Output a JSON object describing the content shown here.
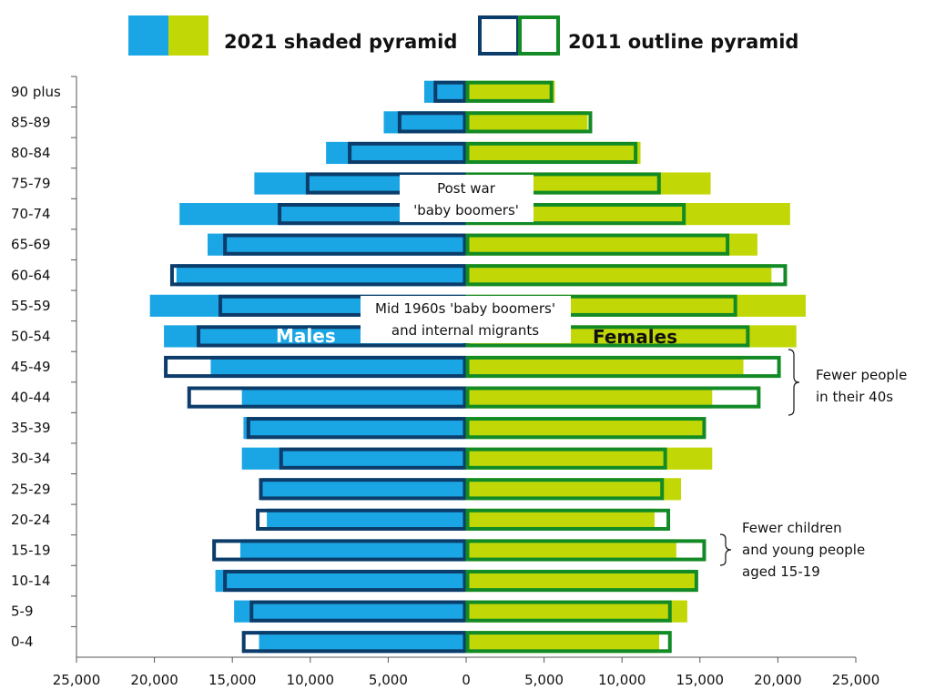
{
  "chart_data": {
    "type": "bar",
    "orientation": "horizontal",
    "categories": [
      "0-4",
      "5-9",
      "10-14",
      "15-19",
      "20-24",
      "25-29",
      "30-34",
      "35-39",
      "40-44",
      "45-49",
      "50-54",
      "55-59",
      "60-64",
      "65-69",
      "70-74",
      "75-79",
      "80-84",
      "85-89",
      "90 plus"
    ],
    "series": [
      {
        "name": "2021 shaded pyramid",
        "group": "Males",
        "year": 2021,
        "values": [
          13200,
          14800,
          16000,
          14400,
          12700,
          13000,
          14300,
          14200,
          14300,
          16300,
          19300,
          20200,
          18500,
          16500,
          18300,
          13500,
          8900,
          5200,
          2600
        ]
      },
      {
        "name": "2021 shaded pyramid",
        "group": "Females",
        "year": 2021,
        "values": [
          12300,
          14100,
          14600,
          13400,
          12000,
          13700,
          15700,
          15100,
          15700,
          17700,
          21100,
          21700,
          19500,
          18600,
          20700,
          15600,
          11100,
          7700,
          5600
        ]
      },
      {
        "name": "2011 outline pyramid",
        "group": "Males",
        "year": 2011,
        "values": [
          14300,
          13800,
          15500,
          16200,
          13400,
          13200,
          11900,
          14000,
          17800,
          19300,
          17200,
          15800,
          18900,
          15500,
          12000,
          10200,
          7500,
          4300,
          2000
        ]
      },
      {
        "name": "2011 outline pyramid",
        "group": "Females",
        "year": 2011,
        "values": [
          13100,
          13100,
          14800,
          15300,
          13000,
          12600,
          12800,
          15300,
          18800,
          20100,
          18100,
          17300,
          20500,
          16800,
          14000,
          12400,
          10900,
          8000,
          5500
        ]
      }
    ],
    "xlim": [
      -25000,
      25000
    ],
    "xticks": [
      "25,000",
      "20,000",
      "15,000",
      "10,000",
      "5,000",
      "0",
      "5,000",
      "10,000",
      "15,000",
      "20,000",
      "25,000"
    ],
    "legend": {
      "placement": "top-center",
      "items": [
        {
          "label": "2021 shaded pyramid"
        },
        {
          "label": "2011 outline pyramid"
        }
      ]
    },
    "side_labels": {
      "males": "Males",
      "females": "Females"
    },
    "annotations": {
      "post_war": [
        "Post war",
        "'baby boomers'"
      ],
      "mid_1960s": [
        "Mid 1960s 'baby boomers'",
        "and internal migrants"
      ],
      "forties": [
        "Fewer people",
        "in their 40s"
      ],
      "young": [
        "Fewer children",
        "and young people",
        "aged 15-19"
      ]
    },
    "colors": {
      "male_fill": "#1aa6e4",
      "female_fill": "#c2d806",
      "male_outline": "#0c3c6a",
      "female_outline": "#128a26",
      "axis": "#555555"
    }
  }
}
